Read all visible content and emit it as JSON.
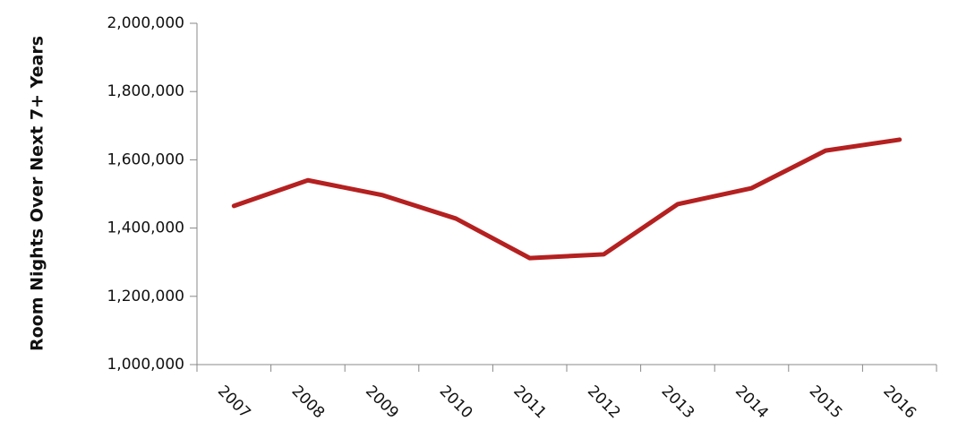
{
  "chart_data": {
    "type": "line",
    "y_label": "Room Nights Over Next 7+ Years",
    "categories": [
      "2007",
      "2008",
      "2009",
      "2010",
      "2011",
      "2012",
      "2013",
      "2014",
      "2015",
      "2016"
    ],
    "values": [
      1465000,
      1540000,
      1497000,
      1428000,
      1312000,
      1323000,
      1470000,
      1517000,
      1627000,
      1659000
    ],
    "color": "#b52020",
    "ylim": [
      1000000,
      2000000
    ],
    "yticks": [
      {
        "value": 1000000,
        "label": "1,000,000"
      },
      {
        "value": 1200000,
        "label": "1,200,000"
      },
      {
        "value": 1400000,
        "label": "1,400,000"
      },
      {
        "value": 1600000,
        "label": "1,600,000"
      },
      {
        "value": 1800000,
        "label": "1,800,000"
      },
      {
        "value": 2000000,
        "label": "2,000,000"
      }
    ],
    "grid": false
  }
}
